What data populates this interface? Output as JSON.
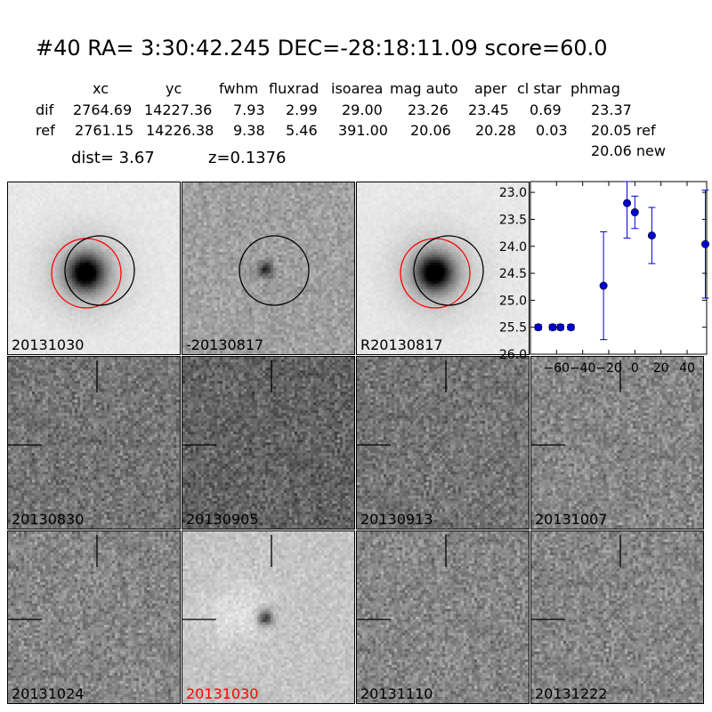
{
  "header": {
    "title": "#40   RA= 3:30:42.245 DEC=-28:18:11.09      score=60.0",
    "columns": [
      "xc",
      "yc",
      "fwhm",
      "fluxrad",
      "isoarea",
      "mag auto",
      "aper",
      "cl star",
      "phmag"
    ],
    "rows": [
      {
        "label": "dif",
        "values": [
          "2764.69",
          "14227.36",
          "7.93",
          "2.99",
          "29.00",
          "23.26",
          "23.45",
          "0.69",
          "23.37"
        ]
      },
      {
        "label": "ref",
        "values": [
          "2761.15",
          "14226.38",
          "9.38",
          "5.46",
          "391.00",
          "20.06",
          "20.28",
          "0.03",
          "20.05 ref"
        ]
      }
    ],
    "extra_phmag": "20.06 new",
    "dist": "dist=  3.67",
    "z": "z=0.1376"
  },
  "panels": [
    {
      "label": "20131030",
      "label_color": "#000000",
      "style": "galaxy",
      "circles": [
        "red",
        "black"
      ]
    },
    {
      "label": "-20130817",
      "label_color": "#000000",
      "style": "diff",
      "circles": [
        "black"
      ]
    },
    {
      "label": "R20130817",
      "label_color": "#000000",
      "style": "galaxy",
      "circles": [
        "red",
        "black"
      ]
    },
    {
      "label": "20130830",
      "label_color": "#000000",
      "style": "noise-dark",
      "crosshair": true
    },
    {
      "label": "20130905",
      "label_color": "#000000",
      "style": "noise-darker",
      "crosshair": true
    },
    {
      "label": "20130913",
      "label_color": "#000000",
      "style": "noise-dark",
      "crosshair": true
    },
    {
      "label": "20131007",
      "label_color": "#000000",
      "style": "noise",
      "crosshair": true
    },
    {
      "label": "20131024",
      "label_color": "#000000",
      "style": "noise",
      "crosshair": true
    },
    {
      "label": "20131030",
      "label_color": "#ff0000",
      "style": "light-diff",
      "crosshair": true
    },
    {
      "label": "20131110",
      "label_color": "#000000",
      "style": "noise",
      "crosshair": true
    },
    {
      "label": "20131222",
      "label_color": "#000000",
      "style": "noise",
      "crosshair": true
    }
  ],
  "chart_data": {
    "type": "scatter",
    "title": "",
    "xlabel": "",
    "ylabel": "",
    "xlim": [
      -80,
      55
    ],
    "ylim": [
      26.0,
      22.8
    ],
    "y_inverted": true,
    "xticks": [
      -60,
      -40,
      -20,
      0,
      20,
      40
    ],
    "xtick_labels": [
      "−60",
      "−40",
      "−20",
      "0",
      "20",
      "40"
    ],
    "yticks": [
      23.0,
      23.5,
      24.0,
      24.5,
      25.0,
      25.5,
      26.0
    ],
    "ytick_labels": [
      "23.0",
      "23.5",
      "24.0",
      "24.5",
      "25.0",
      "25.5",
      "26.0"
    ],
    "marker_color": "#0000cc",
    "points": [
      {
        "x": -74,
        "y": 25.5,
        "err": 0.05
      },
      {
        "x": -63,
        "y": 25.5,
        "err": 0.05
      },
      {
        "x": -57,
        "y": 25.5,
        "err": 0.05
      },
      {
        "x": -49,
        "y": 25.5,
        "err": 0.05
      },
      {
        "x": -24,
        "y": 24.73,
        "err": 1.0
      },
      {
        "x": -6,
        "y": 23.2,
        "err": 0.65
      },
      {
        "x": 0,
        "y": 23.37,
        "err": 0.3
      },
      {
        "x": 13,
        "y": 23.8,
        "err": 0.52
      },
      {
        "x": 54,
        "y": 23.96,
        "err": 1.0
      }
    ]
  }
}
